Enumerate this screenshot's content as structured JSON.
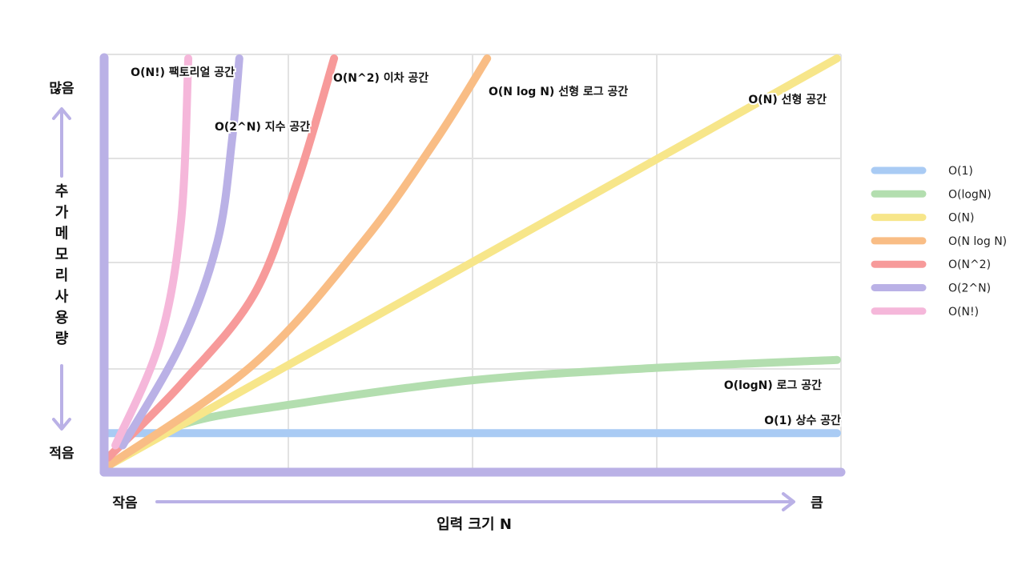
{
  "chart_data": {
    "type": "line",
    "title": "",
    "xlabel": "입력 크기 N",
    "ylabel": "추가 메모리 사용량",
    "x_axis_ends": {
      "low": "작음",
      "high": "큼"
    },
    "y_axis_ends": {
      "low": "적음",
      "high": "많음"
    },
    "xlim": [
      0,
      1
    ],
    "ylim": [
      0,
      1
    ],
    "grid": true,
    "legend_position": "right",
    "series": [
      {
        "name": "O(1)",
        "annotation": "O(1) 상수 공간",
        "color": "#a9cbf4",
        "x": [
          0,
          0.25,
          0.5,
          0.75,
          1
        ],
        "y": [
          0.08,
          0.08,
          0.08,
          0.08,
          0.08
        ]
      },
      {
        "name": "O(logN)",
        "annotation": "O(logN) 로그 공간",
        "color": "#b3deaf",
        "x": [
          0,
          0.1,
          0.25,
          0.5,
          0.75,
          1
        ],
        "y": [
          0,
          0.1,
          0.15,
          0.21,
          0.24,
          0.26
        ]
      },
      {
        "name": "O(N)",
        "annotation": "O(N) 선형 공간",
        "color": "#f7e68a",
        "x": [
          0,
          0.5,
          1
        ],
        "y": [
          0,
          0.5,
          1
        ]
      },
      {
        "name": "O(N log N)",
        "annotation": "O(N log N) 선형 로그 공간",
        "color": "#f9bd85",
        "x": [
          0,
          0.2,
          0.35,
          0.45,
          0.52
        ],
        "y": [
          0,
          0.25,
          0.55,
          0.8,
          1
        ]
      },
      {
        "name": "O(N^2)",
        "annotation": "O(N^2) 이차 공간",
        "color": "#f79a9a",
        "x": [
          0,
          0.1,
          0.2,
          0.26,
          0.31
        ],
        "y": [
          0.02,
          0.2,
          0.42,
          0.7,
          1
        ]
      },
      {
        "name": "O(2^N)",
        "annotation": "O(2^N) 지수 공간",
        "color": "#bab1e6",
        "x": [
          0.02,
          0.1,
          0.15,
          0.17,
          0.18
        ],
        "y": [
          0.05,
          0.3,
          0.55,
          0.8,
          1
        ]
      },
      {
        "name": "O(N!)",
        "annotation": "O(N!) 팩토리얼 공간",
        "color": "#f5b7da",
        "x": [
          0.01,
          0.07,
          0.1,
          0.11
        ],
        "y": [
          0.05,
          0.3,
          0.6,
          1
        ]
      }
    ]
  }
}
